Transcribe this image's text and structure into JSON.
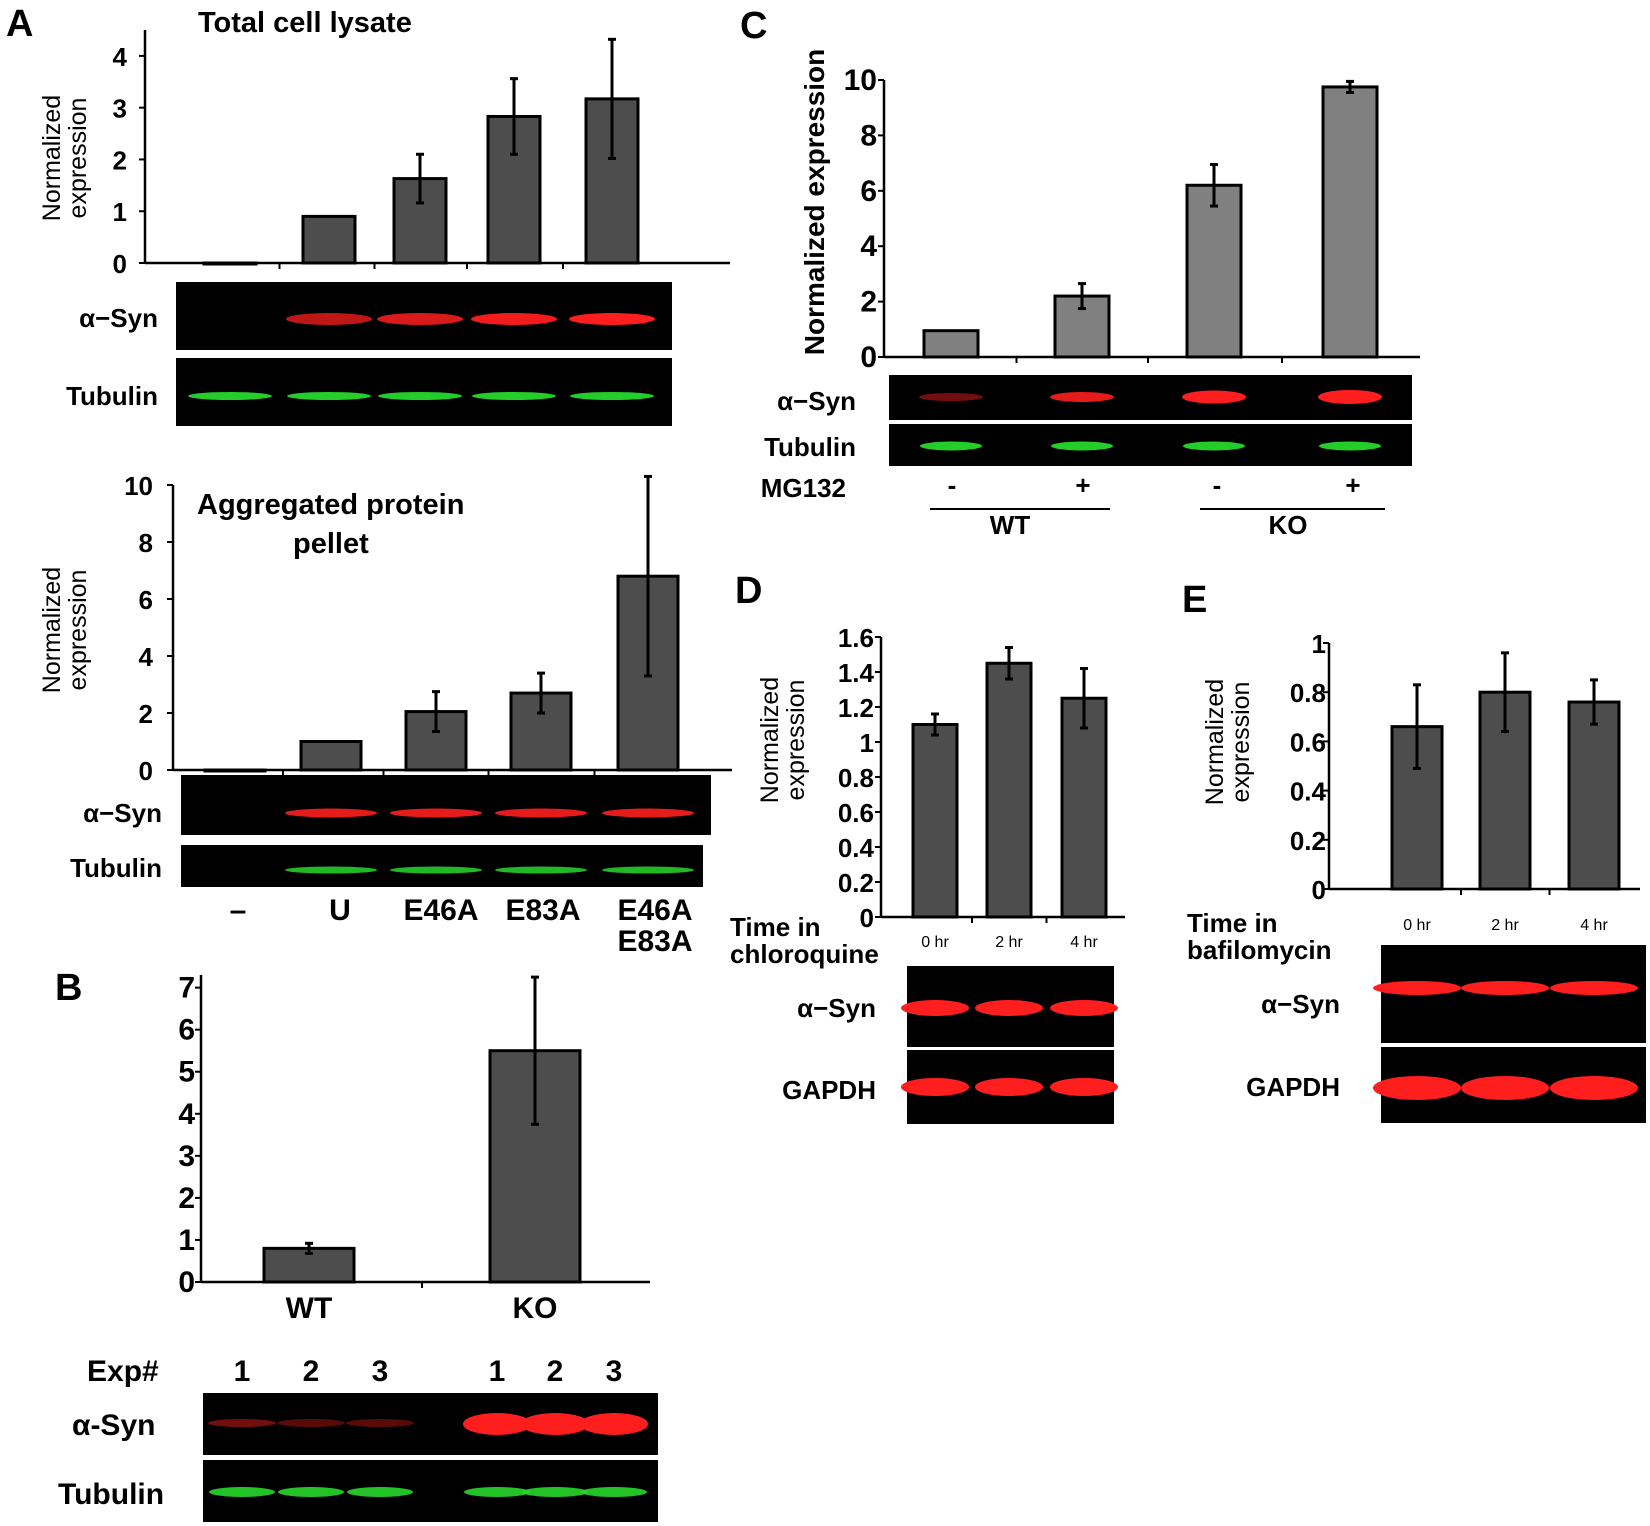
{
  "colors": {
    "bar_dark": "#4d4d4d",
    "bar_light": "#808080",
    "band_red": "#ff1e1e",
    "band_green": "#27d82c",
    "blot_bg": "#000000"
  },
  "panel_letters": [
    "A",
    "B",
    "C",
    "D",
    "E"
  ],
  "blot_labels": {
    "a_syn": "α−Syn",
    "a_syn_b": "α-Syn",
    "tubulin": "Tubulin",
    "gapdh": "GAPDH",
    "mg132": "MG132",
    "exp": "Exp#",
    "time_chloroquine": [
      "Time in",
      "chloroquine"
    ],
    "time_bafilomycin": [
      "Time in",
      "bafilomycin"
    ]
  },
  "lane_labels": {
    "A": [
      "–",
      "U",
      "E46A",
      "E83A",
      "E46A",
      "E83A"
    ],
    "B_exp": [
      "1",
      "2",
      "3",
      "1",
      "2",
      "3"
    ],
    "C_mg132": [
      "-",
      "+",
      "-",
      "+"
    ],
    "C_groups": [
      "WT",
      "KO"
    ]
  },
  "chart_data": [
    {
      "id": "A_top",
      "type": "bar",
      "title": "Total cell lysate",
      "ylabel": [
        "Normalized",
        "expression"
      ],
      "ylim": [
        0,
        4.5
      ],
      "yticks": [
        "0",
        "1",
        "2",
        "3",
        "4"
      ],
      "categories": [
        "–",
        "U",
        "E46A",
        "E83A",
        "E46A E83A"
      ],
      "values": [
        0,
        0.9,
        1.63,
        2.83,
        3.17
      ],
      "errors": [
        0,
        0,
        0.47,
        0.73,
        1.15
      ]
    },
    {
      "id": "A_bottom",
      "type": "bar",
      "title": [
        "Aggregated protein",
        "pellet"
      ],
      "ylabel": [
        "Normalized",
        "expression"
      ],
      "ylim": [
        0,
        10
      ],
      "yticks": [
        "0",
        "2",
        "4",
        "6",
        "8",
        "10"
      ],
      "categories": [
        "–",
        "U",
        "E46A",
        "E83A",
        "E46A E83A"
      ],
      "values": [
        0,
        1,
        2.05,
        2.7,
        6.8
      ],
      "errors": [
        0,
        0,
        0.7,
        0.7,
        3.5
      ]
    },
    {
      "id": "B",
      "type": "bar",
      "title": "",
      "ylim": [
        0,
        7.3
      ],
      "yticks": [
        "0",
        "1",
        "2",
        "3",
        "4",
        "5",
        "6",
        "7"
      ],
      "categories": [
        "WT",
        "KO"
      ],
      "values": [
        0.8,
        5.5
      ],
      "errors": [
        0.12,
        1.75
      ]
    },
    {
      "id": "C",
      "type": "bar",
      "title": "",
      "ylabel": [
        "Normalized expression"
      ],
      "ylim": [
        0,
        10
      ],
      "yticks": [
        "0",
        "2",
        "4",
        "6",
        "8",
        "10"
      ],
      "categories": [
        "WT -",
        "WT +",
        "KO -",
        "KO +"
      ],
      "values": [
        0.95,
        2.2,
        6.2,
        9.75
      ],
      "errors": [
        0,
        0.45,
        0.75,
        0.2
      ]
    },
    {
      "id": "D",
      "type": "bar",
      "title": "",
      "ylabel": [
        "Normalized",
        "expression"
      ],
      "ylim": [
        0,
        1.6
      ],
      "yticks": [
        "0",
        "0.2",
        "0.4",
        "0.6",
        "0.8",
        "1",
        "1.2",
        "1.4",
        "1.6"
      ],
      "categories": [
        "0 hr",
        "2 hr",
        "4 hr"
      ],
      "values": [
        1.1,
        1.45,
        1.25
      ],
      "errors": [
        0.06,
        0.09,
        0.17
      ]
    },
    {
      "id": "E",
      "type": "bar",
      "title": "",
      "ylabel": [
        "Normalized",
        "expression"
      ],
      "ylim": [
        0,
        1
      ],
      "yticks": [
        "0",
        "0.2",
        "0.4",
        "0.6",
        "0.8",
        "1"
      ],
      "categories": [
        "0 hr",
        "2 hr",
        "4 hr"
      ],
      "values": [
        0.66,
        0.8,
        0.76
      ],
      "errors": [
        0.17,
        0.16,
        0.09
      ]
    }
  ]
}
